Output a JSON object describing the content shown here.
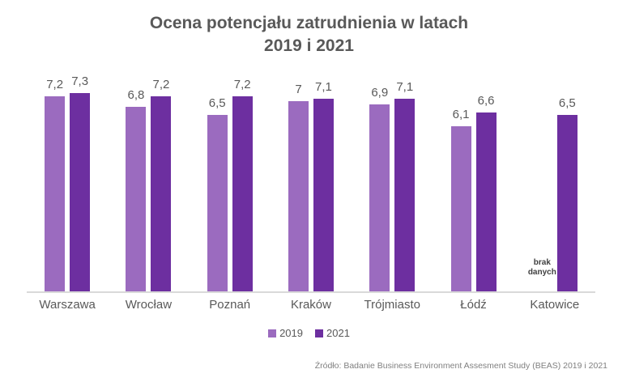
{
  "title": {
    "line1": "Ocena potencjału zatrudnienia w latach",
    "line2": "2019 i 2021"
  },
  "source_note": "Źródło: Badanie Business Environment Assesment Study (BEAS) 2019 i 2021",
  "colors": {
    "series_2019": "#9B6BBF",
    "series_2021": "#6D2FA0",
    "axis_line": "#D9D9D9",
    "label_gray": "#595959",
    "no_data_text": "#404040",
    "source_gray": "#808080"
  },
  "chart_data": {
    "type": "bar",
    "title": "Ocena potencjału zatrudnienia w latach 2019 i 2021",
    "categories": [
      "Warszawa",
      "Wrocław",
      "Poznań",
      "Kraków",
      "Trójmiasto",
      "Łódź",
      "Katowice"
    ],
    "series": [
      {
        "name": "2019",
        "color": "#9B6BBF",
        "values": [
          7.2,
          6.8,
          6.5,
          7,
          6.9,
          6.1,
          null
        ],
        "labels": [
          "7,2",
          "6,8",
          "6,5",
          "7",
          "6,9",
          "6,1",
          null
        ]
      },
      {
        "name": "2021",
        "color": "#6D2FA0",
        "values": [
          7.3,
          7.2,
          7.2,
          7.1,
          7.1,
          6.6,
          6.5
        ],
        "labels": [
          "7,3",
          "7,2",
          "7,2",
          "7,1",
          "7,1",
          "6,6",
          "6,5"
        ]
      }
    ],
    "missing_data_label": "brak danych",
    "xlabel": "",
    "ylabel": "",
    "ylim": [
      0,
      7.5
    ],
    "grid": false,
    "legend_position": "bottom",
    "value_labels": "outside-end",
    "decimal_separator": ","
  }
}
